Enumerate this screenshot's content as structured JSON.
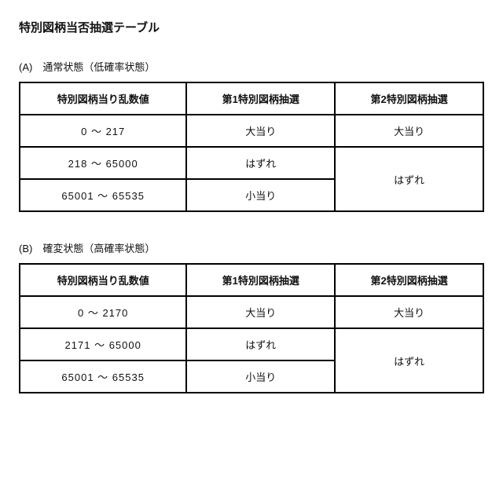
{
  "title": "特別図柄当否抽選テーブル",
  "sectionA": {
    "label": "(A)　通常状態（低確率状態）",
    "headers": [
      "特別図柄当り乱数値",
      "第1特別図柄抽選",
      "第2特別図柄抽選"
    ],
    "rows": [
      {
        "range": "0 ～ 217",
        "col1": "大当り",
        "col2": "大当り"
      },
      {
        "range": "218 ～ 65000",
        "col1": "はずれ",
        "col2_merged": "はずれ"
      },
      {
        "range": "65001 ～ 65535",
        "col1": "小当り"
      }
    ]
  },
  "sectionB": {
    "label": "(B)　確変状態（高確率状態）",
    "headers": [
      "特別図柄当り乱数値",
      "第1特別図柄抽選",
      "第2特別図柄抽選"
    ],
    "rows": [
      {
        "range": "0 ～ 2170",
        "col1": "大当り",
        "col2": "大当り"
      },
      {
        "range": "2171 ～ 65000",
        "col1": "はずれ",
        "col2_merged": "はずれ"
      },
      {
        "range": "65001 ～ 65535",
        "col1": "小当り"
      }
    ]
  }
}
